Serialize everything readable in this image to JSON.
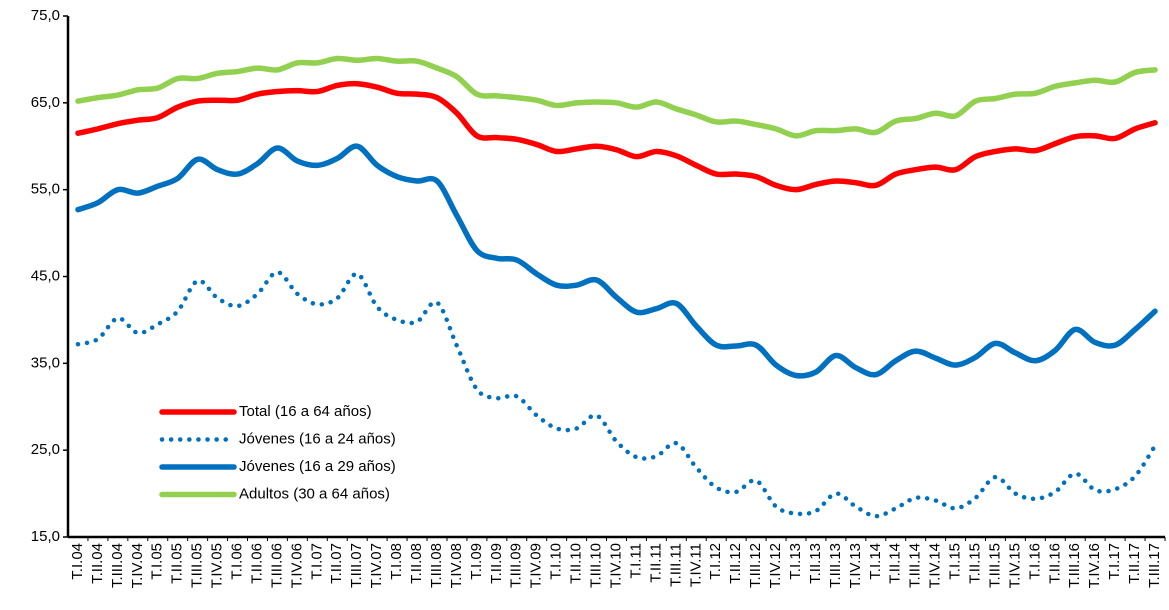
{
  "chart_data": {
    "type": "line",
    "categories": [
      "T.I.04",
      "T.II.04",
      "T.III.04",
      "T.IV.04",
      "T.I.05",
      "T.II.05",
      "T.III.05",
      "T.IV.05",
      "T.I.06",
      "T.II.06",
      "T.III.06",
      "T.IV.06",
      "T.I.07",
      "T.II.07",
      "T.III.07",
      "T.IV.07",
      "T.I.08",
      "T.II.08",
      "T.III.08",
      "T.IV.08",
      "T.I.09",
      "T.II.09",
      "T.III.09",
      "T.IV.09",
      "T.I.10",
      "T.II.10",
      "T.III.10",
      "T.IV.10",
      "T.I.11",
      "T.II.11",
      "T.III.11",
      "T.IV.11",
      "T.I.12",
      "T.II.12",
      "T.III.12",
      "T.IV.12",
      "T.I.13",
      "T.II.13",
      "T.III.13",
      "T.IV.13",
      "T.I.14",
      "T.II.14",
      "T.III.14",
      "T.IV.14",
      "T.I.15",
      "T.II.15",
      "T.III.15",
      "T.IV.15",
      "T.I.16",
      "T.II.16",
      "T.III.16",
      "T.IV.16",
      "T.I.17",
      "T.II.17",
      "T.III.17"
    ],
    "series": [
      {
        "name": "Total (16 a 64 años)",
        "color": "#ff0000",
        "style": "solid",
        "values": [
          61.5,
          62,
          62.6,
          63,
          63.3,
          64.5,
          65.2,
          65.3,
          65.3,
          66,
          66.3,
          66.4,
          66.3,
          67,
          67.2,
          66.8,
          66.1,
          66,
          65.6,
          63.8,
          61.2,
          61,
          60.8,
          60.2,
          59.4,
          59.7,
          60,
          59.6,
          58.8,
          59.4,
          58.9,
          57.8,
          56.8,
          56.8,
          56.5,
          55.5,
          55,
          55.6,
          56,
          55.8,
          55.5,
          56.8,
          57.3,
          57.6,
          57.3,
          58.8,
          59.4,
          59.7,
          59.5,
          60.3,
          61.1,
          61.2,
          60.9,
          62,
          62.7
        ]
      },
      {
        "name": "Jóvenes (16 a 24 años)",
        "color": "#0070c0",
        "style": "dotted",
        "values": [
          37.2,
          37.8,
          40.2,
          38.5,
          39.5,
          41,
          44.5,
          42.5,
          41.6,
          43,
          45.5,
          43,
          41.8,
          42.5,
          45.3,
          41.5,
          40,
          39.8,
          42,
          37,
          32,
          31,
          31.2,
          29,
          27.5,
          27.5,
          29,
          26,
          24.2,
          24.3,
          25.8,
          23,
          20.7,
          20.2,
          21.5,
          18.5,
          17.7,
          18,
          20,
          18.5,
          17.4,
          18.3,
          19.5,
          19.2,
          18.3,
          19.5,
          21.9,
          20,
          19.4,
          20.2,
          22.3,
          20.4,
          20.5,
          22,
          25.5
        ]
      },
      {
        "name": "Jóvenes (16 a 29 años)",
        "color": "#0070c0",
        "style": "solid",
        "values": [
          52.7,
          53.5,
          55,
          54.6,
          55.4,
          56.3,
          58.5,
          57.3,
          56.8,
          58,
          59.8,
          58.3,
          57.8,
          58.6,
          60,
          57.8,
          56.5,
          56,
          56,
          52,
          48,
          47.1,
          46.9,
          45.3,
          44,
          44,
          44.6,
          42.6,
          40.9,
          41.3,
          41.9,
          39.3,
          37.1,
          37,
          37.1,
          34.8,
          33.6,
          34,
          35.9,
          34.5,
          33.7,
          35.3,
          36.4,
          35.6,
          34.8,
          35.7,
          37.3,
          36.2,
          35.3,
          36.5,
          38.9,
          37.4,
          37.1,
          38.9,
          41
        ]
      },
      {
        "name": "Adultos (30 a 64 años)",
        "color": "#92d050",
        "style": "solid",
        "values": [
          65.2,
          65.6,
          65.9,
          66.5,
          66.7,
          67.8,
          67.8,
          68.4,
          68.6,
          69,
          68.8,
          69.6,
          69.6,
          70.1,
          69.9,
          70.1,
          69.8,
          69.8,
          69,
          68,
          66,
          65.8,
          65.6,
          65.3,
          64.7,
          65,
          65.1,
          65,
          64.5,
          65.1,
          64.3,
          63.6,
          62.8,
          62.9,
          62.5,
          62,
          61.2,
          61.8,
          61.8,
          62,
          61.6,
          62.9,
          63.2,
          63.8,
          63.5,
          65.2,
          65.5,
          66,
          66.1,
          66.9,
          67.3,
          67.6,
          67.4,
          68.5,
          68.8
        ]
      }
    ],
    "ylim": [
      15,
      75
    ],
    "yticks": [
      {
        "value": 15,
        "label": "15,0"
      },
      {
        "value": 25,
        "label": "25,0"
      },
      {
        "value": 35,
        "label": "35,0"
      },
      {
        "value": 45,
        "label": "45,0"
      },
      {
        "value": 55,
        "label": "55,0"
      },
      {
        "value": 65,
        "label": "65,0"
      },
      {
        "value": 75,
        "label": "75,0"
      }
    ],
    "grid": false,
    "legend": "lower left"
  }
}
